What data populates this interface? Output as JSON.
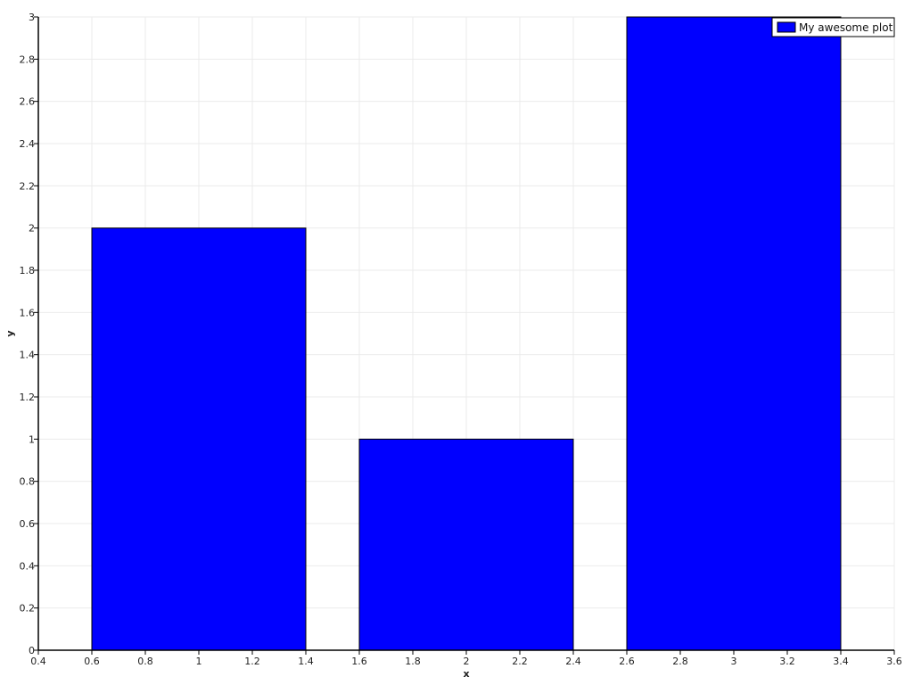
{
  "chart_data": {
    "type": "bar",
    "title": "",
    "xlabel": "x",
    "ylabel": "y",
    "x": [
      1,
      2,
      3
    ],
    "bar_width": 0.8,
    "series": [
      {
        "name": "My awesome plot",
        "values": [
          2,
          1,
          3
        ],
        "color": "#0000ff"
      }
    ],
    "xlim": [
      0.4,
      3.6
    ],
    "ylim": [
      0,
      3
    ],
    "xticks": [
      "0.4",
      "0.6",
      "0.8",
      "1",
      "1.2",
      "1.4",
      "1.6",
      "1.8",
      "2",
      "2.2",
      "2.4",
      "2.6",
      "2.8",
      "3",
      "3.2",
      "3.4",
      "3.6"
    ],
    "yticks": [
      "0",
      "0.2",
      "0.4",
      "0.6",
      "0.8",
      "1",
      "1.2",
      "1.4",
      "1.6",
      "1.8",
      "2",
      "2.2",
      "2.4",
      "2.6",
      "2.8",
      "3"
    ],
    "grid": true,
    "legend_position": "top-right"
  }
}
